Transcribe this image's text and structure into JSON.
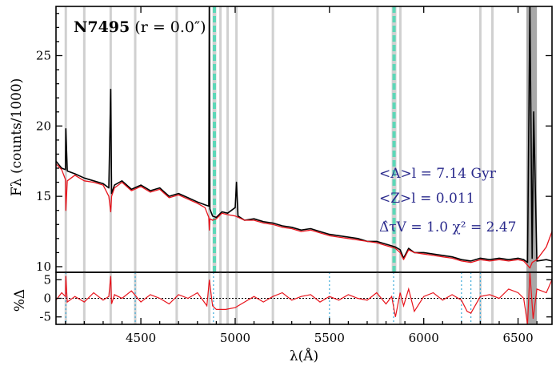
{
  "chart_data": [
    {
      "type": "line",
      "title": "N7495 (r = 0.0″)",
      "title_bold_part": "N7495",
      "title_rest": " (r = 0.0″)",
      "ylabel": "Fλ (counts/1000)",
      "xlim": [
        4050,
        6680
      ],
      "ylim": [
        9.6,
        28.5
      ],
      "yticks": [
        10,
        15,
        20,
        25
      ],
      "grid": false,
      "colors": {
        "observed": "#000000",
        "model": "#e8141c",
        "mask_band": "#d0d0d0",
        "emission_band": "#5cd8b8"
      },
      "masked_lines_x": [
        4102,
        4200,
        4340,
        4470,
        4690,
        4863,
        4922,
        4960,
        5007,
        5200,
        5755,
        5876,
        6300,
        6364,
        6550,
        6583,
        6590
      ],
      "emission_bands_x": [
        [
          4880,
          4900
        ],
        [
          5830,
          5855
        ]
      ],
      "series": [
        {
          "key": "observed",
          "x": [
            4050,
            4080,
            4100,
            4102,
            4110,
            4150,
            4200,
            4250,
            4300,
            4330,
            4340,
            4345,
            4360,
            4400,
            4450,
            4500,
            4550,
            4600,
            4650,
            4700,
            4750,
            4800,
            4840,
            4860,
            4863,
            4866,
            4880,
            4900,
            4930,
            4960,
            5000,
            5007,
            5015,
            5050,
            5100,
            5150,
            5200,
            5250,
            5300,
            5350,
            5400,
            5450,
            5500,
            5550,
            5600,
            5650,
            5700,
            5750,
            5800,
            5850,
            5875,
            5893,
            5920,
            5950,
            6000,
            6050,
            6100,
            6150,
            6200,
            6250,
            6300,
            6350,
            6400,
            6450,
            6500,
            6530,
            6550,
            6563,
            6575,
            6583,
            6600,
            6650,
            6680
          ],
          "y": [
            17.5,
            17.0,
            16.9,
            19.8,
            16.8,
            16.6,
            16.3,
            16.1,
            15.9,
            15.6,
            22.6,
            15.2,
            15.8,
            16.1,
            15.5,
            15.8,
            15.4,
            15.6,
            15.0,
            15.2,
            14.9,
            14.6,
            14.4,
            14.3,
            28.5,
            14.1,
            13.6,
            13.5,
            13.9,
            13.8,
            14.2,
            16.0,
            13.6,
            13.3,
            13.4,
            13.2,
            13.1,
            12.9,
            12.8,
            12.6,
            12.7,
            12.5,
            12.3,
            12.2,
            12.1,
            12.0,
            11.8,
            11.8,
            11.6,
            11.4,
            11.2,
            10.6,
            11.3,
            11.0,
            11.0,
            10.9,
            10.8,
            10.7,
            10.5,
            10.4,
            10.6,
            10.5,
            10.6,
            10.5,
            10.6,
            10.5,
            10.3,
            28.5,
            10.6,
            21.0,
            10.4,
            10.5,
            10.4
          ]
        },
        {
          "key": "model",
          "x": [
            4050,
            4080,
            4100,
            4102,
            4110,
            4150,
            4200,
            4250,
            4300,
            4330,
            4340,
            4345,
            4360,
            4400,
            4450,
            4500,
            4550,
            4600,
            4650,
            4700,
            4750,
            4800,
            4840,
            4860,
            4863,
            4866,
            4880,
            4900,
            4930,
            4960,
            5000,
            5050,
            5100,
            5150,
            5200,
            5250,
            5300,
            5350,
            5400,
            5450,
            5500,
            5550,
            5600,
            5650,
            5700,
            5750,
            5800,
            5850,
            5875,
            5893,
            5920,
            5950,
            6000,
            6050,
            6100,
            6150,
            6200,
            6250,
            6300,
            6350,
            6400,
            6450,
            6500,
            6530,
            6550,
            6563,
            6575,
            6600,
            6650,
            6680
          ],
          "y": [
            17.3,
            16.9,
            16.2,
            14.0,
            16.1,
            16.5,
            16.1,
            16.0,
            15.8,
            15.0,
            13.9,
            15.0,
            15.6,
            16.0,
            15.4,
            15.7,
            15.3,
            15.5,
            14.9,
            15.1,
            14.8,
            14.5,
            14.2,
            13.5,
            12.6,
            13.4,
            13.3,
            13.4,
            13.8,
            13.7,
            13.6,
            13.3,
            13.3,
            13.1,
            13.0,
            12.8,
            12.7,
            12.5,
            12.6,
            12.4,
            12.2,
            12.1,
            12.0,
            11.9,
            11.8,
            11.7,
            11.5,
            11.3,
            11.0,
            10.5,
            11.2,
            11.0,
            10.9,
            10.8,
            10.7,
            10.6,
            10.4,
            10.3,
            10.5,
            10.4,
            10.5,
            10.4,
            10.5,
            10.4,
            10.1,
            9.9,
            10.3,
            10.5,
            11.4,
            12.5
          ]
        }
      ],
      "annotations": [
        {
          "text": "<A>l = 7.14 Gyr",
          "pos": "right"
        },
        {
          "text": "<Z>l = 0.011",
          "pos": "right"
        },
        {
          "text": "Δ̂τV = 1.0  χ² = 2.47",
          "pos": "right"
        }
      ]
    },
    {
      "type": "line",
      "xlabel": "λ(Å)",
      "ylabel": "%Δ",
      "xlim": [
        4050,
        6680
      ],
      "ylim": [
        -7,
        7
      ],
      "yticks": [
        -5,
        0,
        5
      ],
      "xticks": [
        4500,
        5000,
        5500,
        6000,
        6500
      ],
      "zero_line": "dotted",
      "dotted_markers_x": [
        4102,
        4470,
        4885,
        5500,
        5840,
        6200,
        6250,
        6300,
        6560,
        6590
      ],
      "series": [
        {
          "key": "residual",
          "x": [
            4050,
            4080,
            4100,
            4102,
            4110,
            4150,
            4200,
            4250,
            4300,
            4330,
            4340,
            4345,
            4360,
            4400,
            4450,
            4500,
            4550,
            4600,
            4650,
            4700,
            4750,
            4800,
            4850,
            4863,
            4880,
            4900,
            4950,
            5000,
            5050,
            5100,
            5150,
            5200,
            5250,
            5300,
            5350,
            5400,
            5450,
            5500,
            5550,
            5600,
            5650,
            5700,
            5750,
            5800,
            5830,
            5850,
            5875,
            5893,
            5920,
            5950,
            6000,
            6050,
            6100,
            6150,
            6200,
            6230,
            6250,
            6300,
            6350,
            6400,
            6450,
            6500,
            6530,
            6550,
            6563,
            6580,
            6600,
            6650,
            6680
          ],
          "y": [
            -0.5,
            1.5,
            0.5,
            6.0,
            -1.0,
            0.5,
            -1.0,
            1.5,
            -0.5,
            0.5,
            6.0,
            -1.5,
            1.0,
            0.0,
            2.0,
            -1.0,
            1.0,
            0.0,
            -1.5,
            1.0,
            0.0,
            1.5,
            -2.0,
            5.0,
            -2.0,
            -3.0,
            -3.0,
            -2.5,
            -1.0,
            0.5,
            -1.0,
            0.5,
            1.5,
            -0.5,
            0.5,
            1.0,
            -1.0,
            0.5,
            -0.5,
            1.0,
            0.0,
            -0.5,
            1.5,
            -1.5,
            0.5,
            -5.0,
            1.5,
            -2.0,
            2.5,
            -3.5,
            0.5,
            1.5,
            -0.5,
            1.0,
            -0.5,
            -3.5,
            -4.0,
            0.5,
            1.0,
            0.0,
            2.5,
            1.5,
            0.0,
            -7.0,
            7.0,
            -5.5,
            2.5,
            1.5,
            5.0
          ]
        }
      ]
    }
  ]
}
